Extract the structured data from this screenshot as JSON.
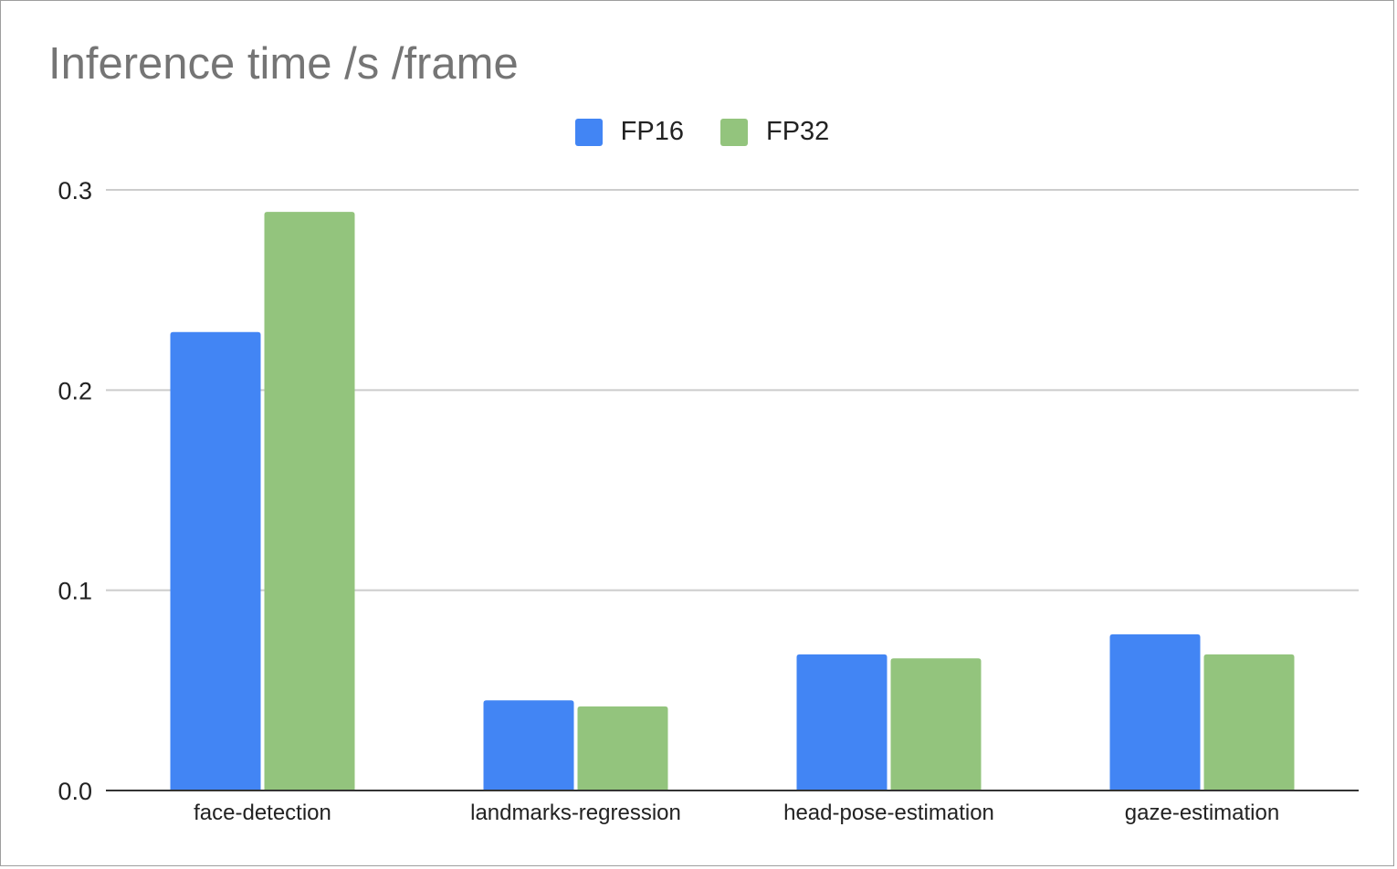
{
  "chart_data": {
    "type": "bar",
    "title": "Inference time /s /frame",
    "xlabel": "",
    "ylabel": "",
    "categories": [
      "face-detection",
      "landmarks-regression",
      "head-pose-estimation",
      "gaze-estimation"
    ],
    "series": [
      {
        "name": "FP16",
        "color": "#4285f4",
        "values": [
          0.229,
          0.045,
          0.068,
          0.078
        ]
      },
      {
        "name": "FP32",
        "color": "#93c47d",
        "values": [
          0.289,
          0.042,
          0.066,
          0.068
        ]
      }
    ],
    "ylim": [
      0,
      0.3
    ],
    "yticks": [
      "0.0",
      "0.1",
      "0.2",
      "0.3"
    ],
    "grid": true,
    "legend_position": "top-center"
  }
}
